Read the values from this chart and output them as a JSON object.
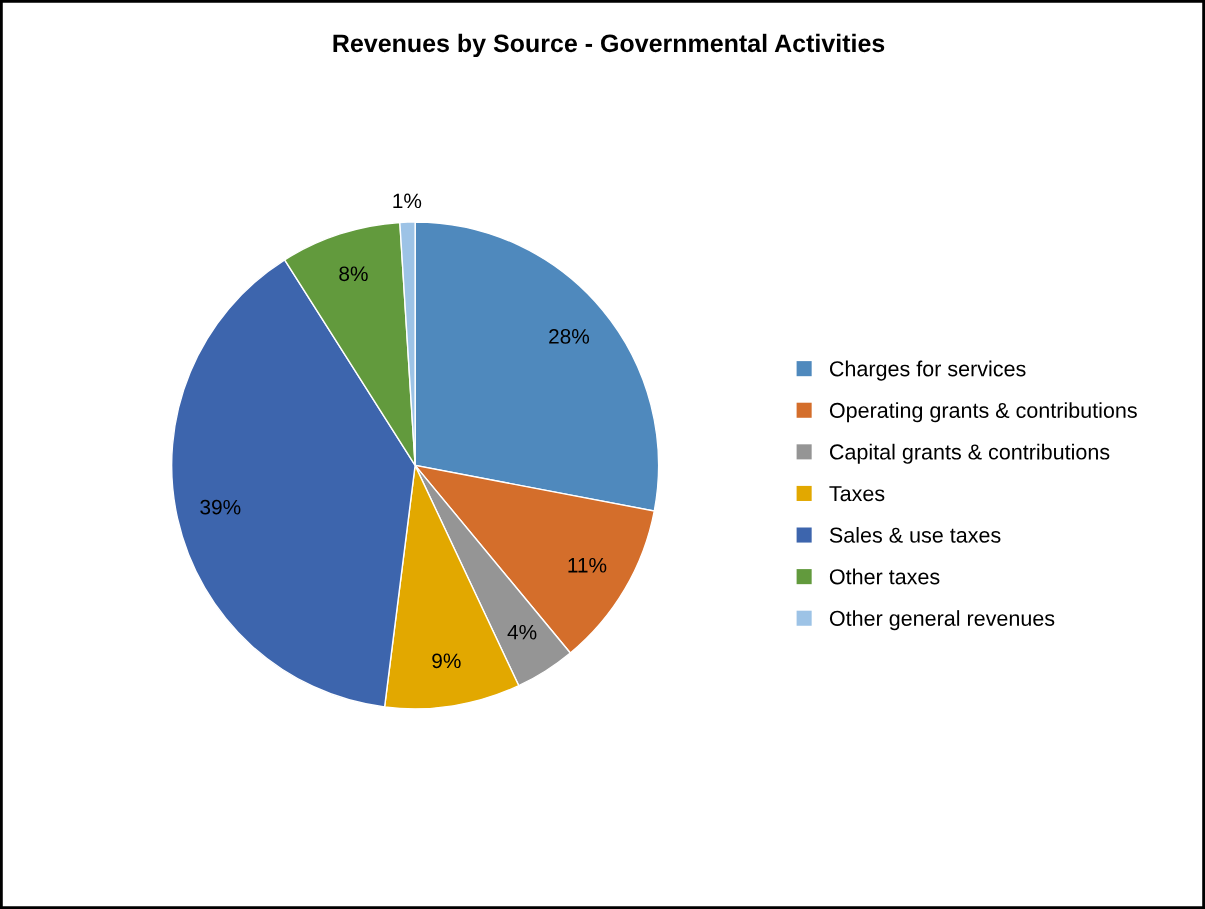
{
  "chart_data": {
    "type": "pie",
    "title": "Revenues by Source - Governmental Activities",
    "categories": [
      "Charges for services",
      "Operating grants & contributions",
      "Capital grants & contributions",
      "Taxes",
      "Sales & use taxes",
      "Other taxes",
      "Other general revenues"
    ],
    "values": [
      28,
      11,
      4,
      9,
      39,
      8,
      1
    ],
    "colors": [
      "#4f89bd",
      "#d46e2b",
      "#959595",
      "#e2a800",
      "#3d65ad",
      "#629a3d",
      "#9dc3e6"
    ],
    "value_labels": [
      "28%",
      "11%",
      "4%",
      "9%",
      "39%",
      "8%",
      "1%"
    ],
    "legend": "right"
  }
}
